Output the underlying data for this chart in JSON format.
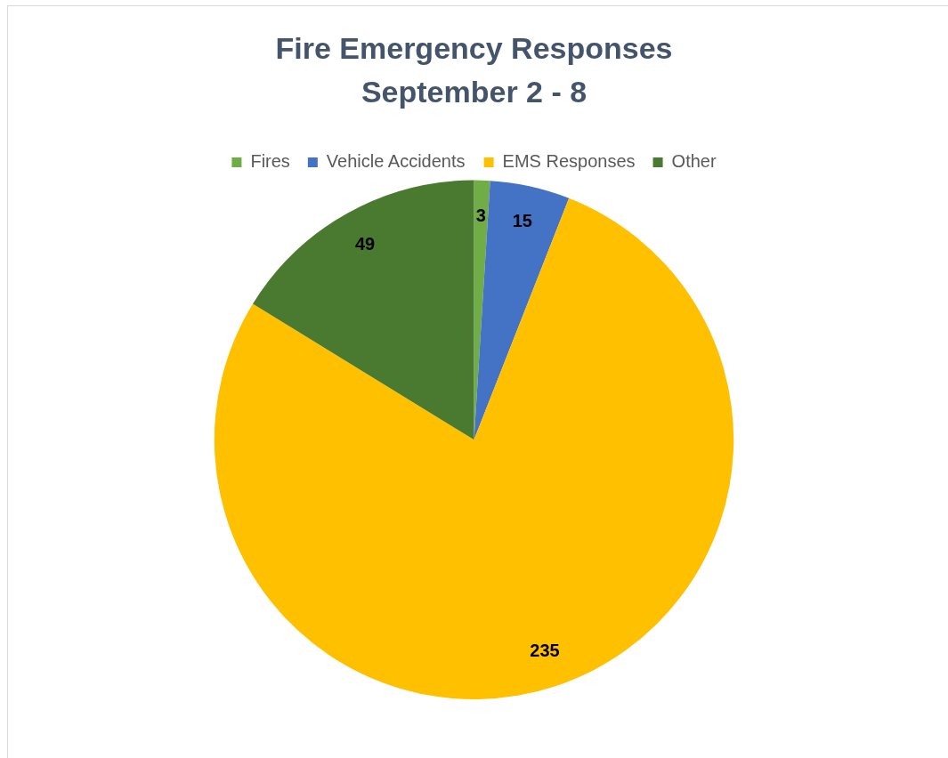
{
  "chart_data": {
    "type": "pie",
    "title": "Fire Emergency Responses",
    "subtitle": "September 2 - 8",
    "categories": [
      "Fires",
      "Vehicle Accidents",
      "EMS Responses",
      "Other"
    ],
    "values": [
      3,
      15,
      235,
      49
    ],
    "colors": [
      "#70ad47",
      "#4472c4",
      "#ffc000",
      "#4a7a2f"
    ],
    "legend": "top",
    "data_labels": true
  }
}
